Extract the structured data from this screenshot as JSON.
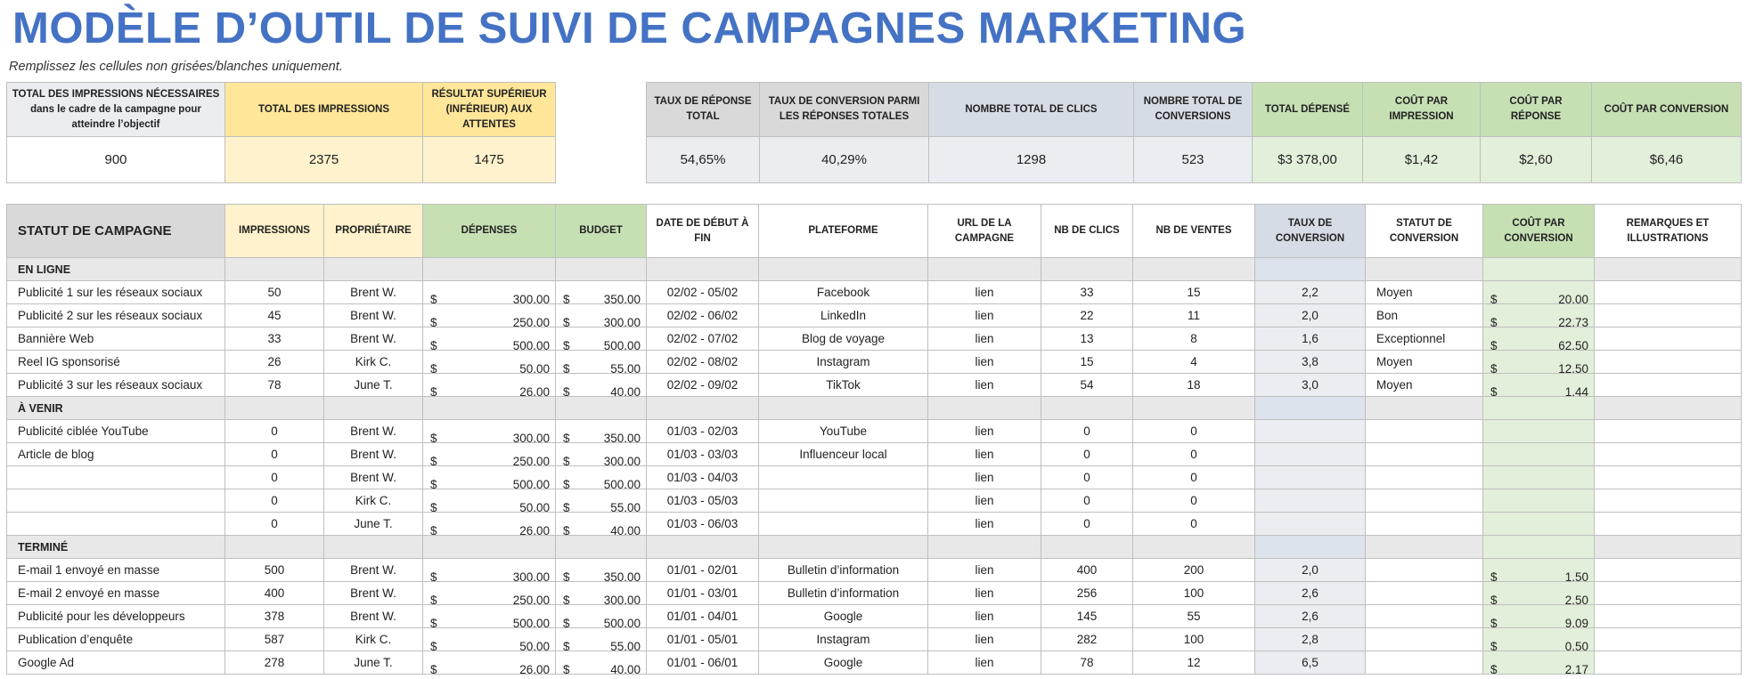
{
  "title": "MODÈLE D’OUTIL DE SUIVI DE CAMPAGNES MARKETING",
  "subtitle": "Remplissez les cellules non grisées/blanches uniquement.",
  "summary_left": {
    "headers": [
      "TOTAL DES IMPRESSIONS NÉCESSAIRES dans le cadre de la campagne pour atteindre l’objectif",
      "TOTAL DES IMPRESSIONS",
      "RÉSULTAT SUPÉRIEUR (INFÉRIEUR) AUX ATTENTES"
    ],
    "values": [
      "900",
      "2375",
      "1475"
    ]
  },
  "summary_right": {
    "headers": [
      "TAUX DE RÉPONSE TOTAL",
      "TAUX DE CONVERSION PARMI LES RÉPONSES TOTALES",
      "NOMBRE TOTAL DE CLICS",
      "NOMBRE TOTAL DE CONVERSIONS",
      "TOTAL DÉPENSÉ",
      "COÛT PAR IMPRESSION",
      "COÛT PAR RÉPONSE",
      "COÛT PAR CONVERSION"
    ],
    "values": [
      "54,65%",
      "40,29%",
      "1298",
      "523",
      "$3 378,00",
      "$1,42",
      "$2,60",
      "$6,46"
    ]
  },
  "table": {
    "headers": [
      "STATUT DE CAMPAGNE",
      "IMPRESSIONS",
      "PROPRIÉTAIRE",
      "DÉPENSES",
      "BUDGET",
      "DATE DE DÉBUT À FIN",
      "PLATEFORME",
      "URL DE LA CAMPAGNE",
      "NB DE CLICS",
      "NB DE VENTES",
      "TAUX DE CONVERSION",
      "STATUT DE CONVERSION",
      "COÛT PAR CONVERSION",
      "REMARQUES ET ILLUSTRATIONS"
    ],
    "currency": "$",
    "sections": [
      {
        "name": "EN LIGNE",
        "rows": [
          [
            "Publicité 1 sur les réseaux sociaux",
            "50",
            "Brent W.",
            "300,00",
            "350,00",
            "02/02 - 05/02",
            "Facebook",
            "lien",
            "33",
            "15",
            "2,2",
            "Moyen",
            "20,00",
            ""
          ],
          [
            "Publicité 2 sur les réseaux sociaux",
            "45",
            "Brent W.",
            "250,00",
            "300,00",
            "02/02 - 06/02",
            "LinkedIn",
            "lien",
            "22",
            "11",
            "2,0",
            "Bon",
            "22,73",
            ""
          ],
          [
            "Bannière Web",
            "33",
            "Brent W.",
            "500,00",
            "500,00",
            "02/02 - 07/02",
            "Blog de voyage",
            "lien",
            "13",
            "8",
            "1,6",
            "Exceptionnel",
            "62,50",
            ""
          ],
          [
            "Reel IG sponsorisé",
            "26",
            "Kirk C.",
            "50,00",
            "55,00",
            "02/02 - 08/02",
            "Instagram",
            "lien",
            "15",
            "4",
            "3,8",
            "Moyen",
            "12,50",
            ""
          ],
          [
            "Publicité 3 sur les réseaux sociaux",
            "78",
            "June T.",
            "26,00",
            "40,00",
            "02/02 - 09/02",
            "TikTok",
            "lien",
            "54",
            "18",
            "3,0",
            "Moyen",
            "1,44",
            ""
          ]
        ]
      },
      {
        "name": "À VENIR",
        "rows": [
          [
            "Publicité ciblée YouTube",
            "0",
            "Brent W.",
            "300,00",
            "350,00",
            "01/03 - 02/03",
            "YouTube",
            "lien",
            "0",
            "0",
            "",
            "",
            "",
            ""
          ],
          [
            "Article de blog",
            "0",
            "Brent W.",
            "250,00",
            "300,00",
            "01/03 - 03/03",
            "Influenceur local",
            "lien",
            "0",
            "0",
            "",
            "",
            "",
            ""
          ],
          [
            "",
            "0",
            "Brent W.",
            "500,00",
            "500,00",
            "01/03 - 04/03",
            "",
            "lien",
            "0",
            "0",
            "",
            "",
            "",
            ""
          ],
          [
            "",
            "0",
            "Kirk C.",
            "50,00",
            "55,00",
            "01/03 - 05/03",
            "",
            "lien",
            "0",
            "0",
            "",
            "",
            "",
            ""
          ],
          [
            "",
            "0",
            "June T.",
            "26,00",
            "40,00",
            "01/03 - 06/03",
            "",
            "lien",
            "0",
            "0",
            "",
            "",
            "",
            ""
          ]
        ]
      },
      {
        "name": "TERMINÉ",
        "rows": [
          [
            "E-mail 1 envoyé en masse",
            "500",
            "Brent W.",
            "300,00",
            "350,00",
            "01/01 - 02/01",
            "Bulletin d’information",
            "lien",
            "400",
            "200",
            "2,0",
            "",
            "1,50",
            ""
          ],
          [
            "E-mail 2 envoyé en masse",
            "400",
            "Brent W.",
            "250,00",
            "300,00",
            "01/01 - 03/01",
            "Bulletin d’information",
            "lien",
            "256",
            "100",
            "2,6",
            "",
            "2,50",
            ""
          ],
          [
            "Publicité pour les développeurs",
            "378",
            "Brent W.",
            "500,00",
            "500,00",
            "01/01 - 04/01",
            "Google",
            "lien",
            "145",
            "55",
            "2,6",
            "",
            "9,09",
            ""
          ],
          [
            "Publication d’enquête",
            "587",
            "Kirk C.",
            "50,00",
            "55,00",
            "01/01 - 05/01",
            "Instagram",
            "lien",
            "282",
            "100",
            "2,8",
            "",
            "0,50",
            ""
          ],
          [
            "Google Ad",
            "278",
            "June T.",
            "26,00",
            "40,00",
            "01/01 - 06/01",
            "Google",
            "lien",
            "78",
            "12",
            "6,5",
            "",
            "2,17",
            ""
          ]
        ]
      }
    ]
  }
}
